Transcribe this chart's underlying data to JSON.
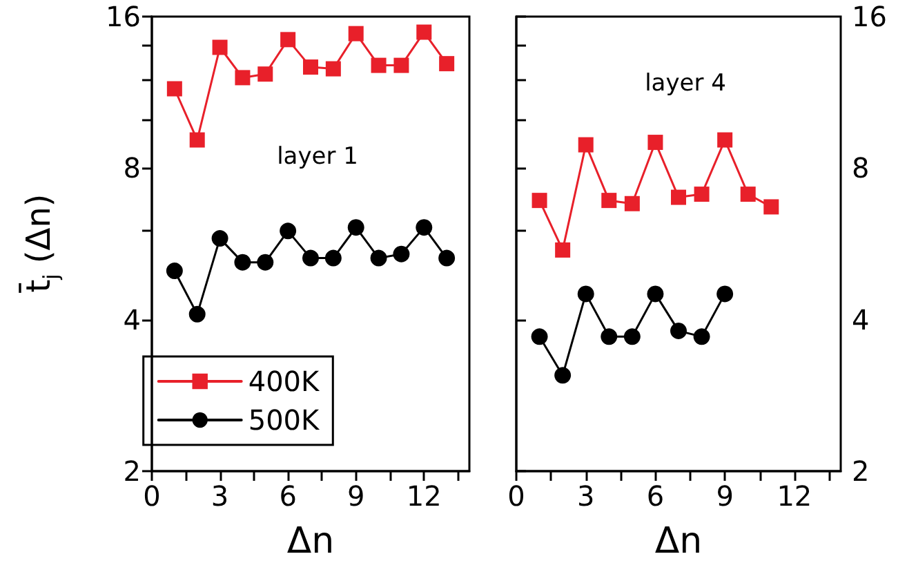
{
  "chart_data": [
    {
      "type": "line",
      "title": "layer 1",
      "xlabel": "Δn",
      "ylabel": "t̄$_{j}$ (Δn)",
      "log": "y",
      "legend": "bottom",
      "x": [
        1,
        2,
        3,
        4,
        5,
        6,
        7,
        8,
        9,
        10,
        11,
        12,
        13
      ],
      "xlim": [
        0,
        14
      ],
      "xticks": [
        0,
        {
          "value": 1.5,
          "label": null
        },
        3,
        {
          "value": 4.5,
          "label": null
        },
        6,
        {
          "value": 7.5,
          "label": null
        },
        9,
        {
          "value": 10.5,
          "label": null
        },
        12,
        {
          "value": 13.5,
          "label": null
        }
      ],
      "ylim": [
        2,
        16
      ],
      "yticks": [
        2,
        4,
        {
          "value": 6,
          "label": null
        },
        8,
        {
          "value": 10,
          "label": null
        },
        {
          "value": 12,
          "label": null
        },
        {
          "value": 14,
          "label": null
        },
        16
      ],
      "series": [
        {
          "name": "400K",
          "color": "#e8202a",
          "marker": "square",
          "values": [
            11.5,
            9.1,
            13.9,
            12.1,
            12.3,
            14.4,
            12.7,
            12.6,
            14.8,
            12.8,
            12.8,
            14.9,
            12.9
          ]
        },
        {
          "name": "500K",
          "color": "#000000",
          "marker": "circle",
          "values": [
            5.0,
            4.1,
            5.8,
            5.2,
            5.2,
            6.0,
            5.3,
            5.3,
            6.1,
            5.3,
            5.4,
            6.1,
            5.3
          ]
        }
      ]
    },
    {
      "type": "line",
      "title": "layer 4",
      "xlabel": "Δn",
      "log": "y2",
      "x": [
        1,
        2,
        3,
        4,
        5,
        6,
        7,
        8,
        9,
        10,
        11
      ],
      "xlim": [
        0,
        14
      ],
      "xticks": [
        0,
        {
          "value": 1.5,
          "label": null
        },
        3,
        {
          "value": 4.5,
          "label": null
        },
        6,
        {
          "value": 7.5,
          "label": null
        },
        9,
        {
          "value": 10.5,
          "label": null
        },
        12,
        {
          "value": 13.5,
          "label": null
        }
      ],
      "y2lim": [
        2,
        16
      ],
      "y2ticks": [
        2,
        4,
        {
          "value": 6,
          "label": null
        },
        8,
        {
          "value": 10,
          "label": null
        },
        {
          "value": 12,
          "label": null
        },
        {
          "value": 14,
          "label": null
        },
        16
      ],
      "series": [
        {
          "color": "#e8202a",
          "marker": "square",
          "axis": "y2",
          "values": [
            6.9,
            5.5,
            8.9,
            6.9,
            6.8,
            9.0,
            7.0,
            7.1,
            9.1,
            7.1,
            6.7
          ]
        },
        {
          "color": "#000000",
          "marker": "circle",
          "axis": "y2",
          "values": [
            3.7,
            3.1,
            4.5,
            3.7,
            3.7,
            4.5,
            3.8,
            3.7,
            4.5,
            null,
            null
          ]
        }
      ]
    }
  ]
}
